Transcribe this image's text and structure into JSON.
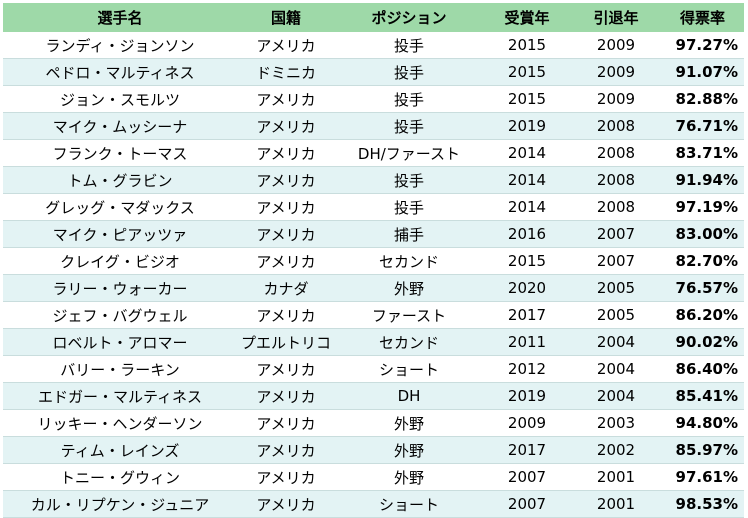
{
  "table": {
    "headers": [
      "選手名",
      "国籍",
      "ポジション",
      "受賞年",
      "引退年",
      "得票率"
    ],
    "rows": [
      [
        "ランディ・ジョンソン",
        "アメリカ",
        "投手",
        "2015",
        "2009",
        "97.27%"
      ],
      [
        "ペドロ・マルティネス",
        "ドミニカ",
        "投手",
        "2015",
        "2009",
        "91.07%"
      ],
      [
        "ジョン・スモルツ",
        "アメリカ",
        "投手",
        "2015",
        "2009",
        "82.88%"
      ],
      [
        "マイク・ムッシーナ",
        "アメリカ",
        "投手",
        "2019",
        "2008",
        "76.71%"
      ],
      [
        "フランク・トーマス",
        "アメリカ",
        "DH/ファースト",
        "2014",
        "2008",
        "83.71%"
      ],
      [
        "トム・グラビン",
        "アメリカ",
        "投手",
        "2014",
        "2008",
        "91.94%"
      ],
      [
        "グレッグ・マダックス",
        "アメリカ",
        "投手",
        "2014",
        "2008",
        "97.19%"
      ],
      [
        "マイク・ピアッツァ",
        "アメリカ",
        "捕手",
        "2016",
        "2007",
        "83.00%"
      ],
      [
        "クレイグ・ビジオ",
        "アメリカ",
        "セカンド",
        "2015",
        "2007",
        "82.70%"
      ],
      [
        "ラリー・ウォーカー",
        "カナダ",
        "外野",
        "2020",
        "2005",
        "76.57%"
      ],
      [
        "ジェフ・バグウェル",
        "アメリカ",
        "ファースト",
        "2017",
        "2005",
        "86.20%"
      ],
      [
        "ロベルト・アロマー",
        "プエルトリコ",
        "セカンド",
        "2011",
        "2004",
        "90.02%"
      ],
      [
        "バリー・ラーキン",
        "アメリカ",
        "ショート",
        "2012",
        "2004",
        "86.40%"
      ],
      [
        "エドガー・マルティネス",
        "アメリカ",
        "DH",
        "2019",
        "2004",
        "85.41%"
      ],
      [
        "リッキー・ヘンダーソン",
        "アメリカ",
        "外野",
        "2009",
        "2003",
        "94.80%"
      ],
      [
        "ティム・レインズ",
        "アメリカ",
        "外野",
        "2017",
        "2002",
        "85.97%"
      ],
      [
        "トニー・グウィン",
        "アメリカ",
        "外野",
        "2007",
        "2001",
        "97.61%"
      ],
      [
        "カル・リプケン・ジュニア",
        "アメリカ",
        "ショート",
        "2007",
        "2001",
        "98.53%"
      ]
    ]
  }
}
